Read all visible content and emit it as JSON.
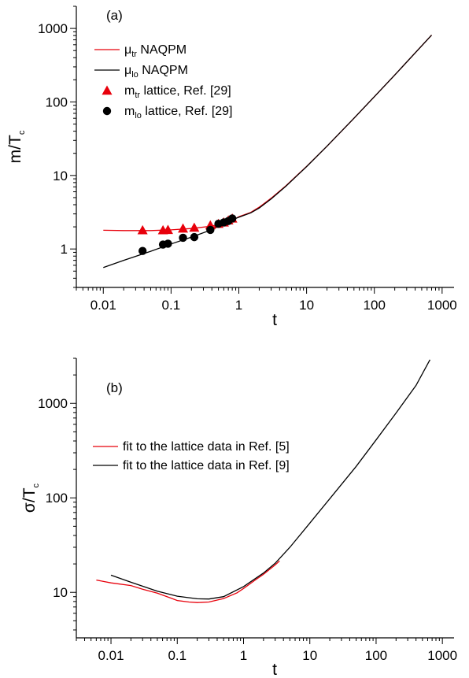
{
  "chart_data": [
    {
      "panel": "(a)",
      "type": "line",
      "scale": {
        "x": "log",
        "y": "log"
      },
      "xlabel": "t",
      "ylabel": "m/T",
      "ylabel_sub": "c",
      "xlim": [
        0.004,
        1500
      ],
      "ylim": [
        0.3,
        2000
      ],
      "x_ticks": [
        {
          "value": 0.01,
          "label": "0.01"
        },
        {
          "value": 0.1,
          "label": "0.1"
        },
        {
          "value": 1,
          "label": "1"
        },
        {
          "value": 10,
          "label": "10"
        },
        {
          "value": 100,
          "label": "100"
        },
        {
          "value": 1000,
          "label": "1000"
        }
      ],
      "y_ticks": [
        {
          "value": 1,
          "label": "1"
        },
        {
          "value": 10,
          "label": "10"
        },
        {
          "value": 100,
          "label": "100"
        },
        {
          "value": 1000,
          "label": "1000"
        }
      ],
      "legend_position": "top-left",
      "series": [
        {
          "kind": "line",
          "label_main": "μ",
          "label_sub": "tr",
          "label_rest": " NAQPM",
          "color": "#e8000b",
          "x": [
            0.01,
            0.02,
            0.05,
            0.1,
            0.2,
            0.4,
            0.6,
            0.8,
            1,
            1.5,
            2,
            3,
            5,
            10,
            20,
            50,
            100,
            200,
            500,
            700
          ],
          "y": [
            1.8,
            1.78,
            1.78,
            1.82,
            1.9,
            2.05,
            2.25,
            2.45,
            2.75,
            3.15,
            3.7,
            4.9,
            7.3,
            13.3,
            25,
            60,
            118,
            232,
            580,
            810
          ]
        },
        {
          "kind": "line",
          "label_main": "μ",
          "label_sub": "lo",
          "label_rest": " NAQPM",
          "color": "#000000",
          "x": [
            0.01,
            0.02,
            0.05,
            0.1,
            0.2,
            0.4,
            0.6,
            0.8,
            1,
            1.5,
            2,
            3,
            5,
            10,
            20,
            50,
            100,
            200,
            500,
            700
          ],
          "y": [
            0.56,
            0.7,
            0.93,
            1.17,
            1.45,
            1.83,
            2.2,
            2.5,
            2.7,
            3.1,
            3.6,
            4.8,
            7.2,
            13.2,
            25,
            60,
            118,
            232,
            580,
            810
          ]
        },
        {
          "kind": "marker",
          "marker": "triangle",
          "label_main": "m",
          "label_sub": "tr",
          "label_rest": " lattice, Ref. [29]",
          "color": "#e8000b",
          "x": [
            0.038,
            0.076,
            0.09,
            0.15,
            0.22,
            0.38,
            0.5,
            0.6,
            0.7,
            0.8
          ],
          "y": [
            1.8,
            1.8,
            1.82,
            1.9,
            1.95,
            2.1,
            2.2,
            2.3,
            2.45,
            2.6
          ]
        },
        {
          "kind": "marker",
          "marker": "circle",
          "label_main": "m",
          "label_sub": "lo",
          "label_rest": " lattice, Ref. [29]",
          "color": "#000000",
          "x": [
            0.038,
            0.076,
            0.09,
            0.15,
            0.22,
            0.38,
            0.5,
            0.6,
            0.7,
            0.8
          ],
          "y": [
            0.94,
            1.15,
            1.18,
            1.42,
            1.45,
            1.82,
            2.2,
            2.3,
            2.4,
            2.6
          ]
        }
      ]
    },
    {
      "panel": "(b)",
      "type": "line",
      "scale": {
        "x": "log",
        "y": "log"
      },
      "xlabel": "t",
      "ylabel": "σ/T",
      "ylabel_sub": "c",
      "xlim": [
        0.003,
        1500
      ],
      "ylim": [
        3.3,
        3000
      ],
      "x_ticks": [
        {
          "value": 0.01,
          "label": "0.01"
        },
        {
          "value": 0.1,
          "label": "0.1"
        },
        {
          "value": 1,
          "label": "1"
        },
        {
          "value": 10,
          "label": "10"
        },
        {
          "value": 100,
          "label": "100"
        },
        {
          "value": 1000,
          "label": "1000"
        }
      ],
      "y_ticks": [
        {
          "value": 10,
          "label": "10"
        },
        {
          "value": 100,
          "label": "100"
        },
        {
          "value": 1000,
          "label": "1000"
        }
      ],
      "legend_position": "center-left",
      "series": [
        {
          "kind": "line",
          "label_main": "fit to the lattice data in Ref. [5]",
          "color": "#e8000b",
          "x": [
            0.006,
            0.01,
            0.02,
            0.03,
            0.05,
            0.08,
            0.1,
            0.15,
            0.2,
            0.3,
            0.5,
            0.8,
            1,
            1.5,
            2,
            3,
            3.5
          ],
          "y": [
            13.5,
            12.6,
            11.8,
            10.8,
            9.8,
            8.7,
            8.2,
            7.9,
            7.8,
            7.9,
            8.6,
            9.9,
            11.0,
            13.5,
            15.5,
            19.5,
            21.5
          ]
        },
        {
          "kind": "line",
          "label_main": "fit to the lattice data in Ref. [9]",
          "color": "#000000",
          "x": [
            0.01,
            0.02,
            0.05,
            0.1,
            0.2,
            0.3,
            0.5,
            1,
            2,
            3,
            5,
            10,
            20,
            50,
            100,
            200,
            400,
            650
          ],
          "y": [
            15.2,
            12.8,
            10.3,
            9.1,
            8.55,
            8.5,
            9.0,
            11.5,
            16.0,
            20.3,
            30,
            54,
            98,
            215,
            410,
            790,
            1550,
            2900
          ]
        }
      ]
    }
  ]
}
